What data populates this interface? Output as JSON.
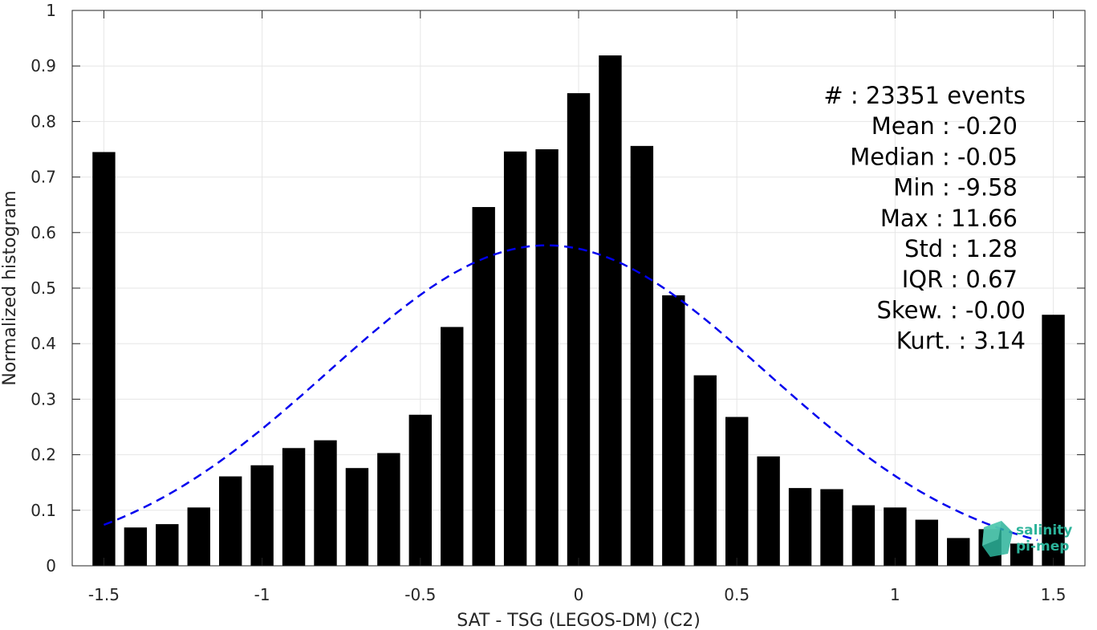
{
  "chart_data": {
    "type": "bar",
    "xlabel": "SAT - TSG (LEGOS-DM) (C2)",
    "ylabel": "Normalized histogram",
    "xlim": [
      -1.6,
      1.6
    ],
    "ylim": [
      0,
      1
    ],
    "xticks": [
      -1.5,
      -1,
      -0.5,
      0,
      0.5,
      1,
      1.5
    ],
    "xtick_labels": [
      "-1.5",
      "-1",
      "-0.5",
      "0",
      "0.5",
      "1",
      "1.5"
    ],
    "yticks": [
      0,
      0.1,
      0.2,
      0.3,
      0.4,
      0.5,
      0.6,
      0.7,
      0.8,
      0.9,
      1
    ],
    "ytick_labels": [
      "0",
      "0.1",
      "0.2",
      "0.3",
      "0.4",
      "0.5",
      "0.6",
      "0.7",
      "0.8",
      "0.9",
      "1"
    ],
    "grid": true,
    "bar_color": "#000000",
    "bar_centers": [
      -1.5,
      -1.4,
      -1.3,
      -1.2,
      -1.1,
      -1.0,
      -0.9,
      -0.8,
      -0.7,
      -0.6,
      -0.5,
      -0.4,
      -0.3,
      -0.2,
      -0.1,
      0.0,
      0.1,
      0.2,
      0.3,
      0.4,
      0.5,
      0.6,
      0.7,
      0.8,
      0.9,
      1.0,
      1.1,
      1.2,
      1.3,
      1.4,
      1.5
    ],
    "values": [
      0.745,
      0.069,
      0.075,
      0.105,
      0.161,
      0.181,
      0.212,
      0.226,
      0.176,
      0.203,
      0.272,
      0.43,
      0.646,
      0.746,
      0.75,
      0.851,
      0.919,
      0.756,
      0.487,
      0.343,
      0.268,
      0.197,
      0.14,
      0.138,
      0.109,
      0.105,
      0.083,
      0.05,
      0.066,
      0.04,
      0.452
    ],
    "fit_curve": {
      "style": "dashed",
      "color": "#0000ee",
      "mean": -0.1,
      "std": 0.69,
      "peak": 0.577,
      "x_range": [
        -1.5,
        1.45
      ]
    },
    "annotations": [
      "#  : 23351 events",
      "Mean : -0.20",
      "Median : -0.05",
      "Min : -9.58",
      "Max : 11.66",
      "Std : 1.28",
      "IQR : 0.67",
      "Skew. : -0.00",
      "Kurt. : 3.14"
    ]
  },
  "logo": {
    "line1": "salinity",
    "line2": "pi-mep",
    "color": "#2bb39a"
  }
}
